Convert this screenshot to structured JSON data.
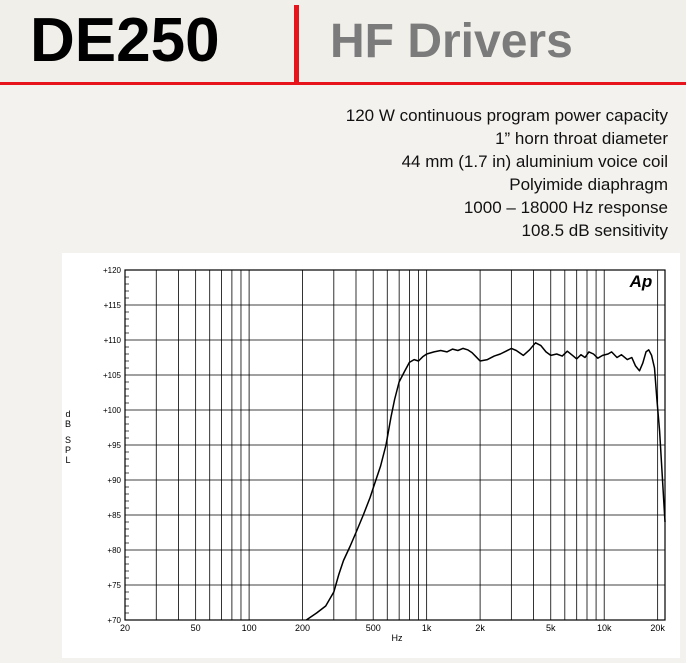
{
  "header": {
    "model": "DE250",
    "category": "HF Drivers",
    "accent_color": "#e8141c",
    "category_color": "#7b7b7b"
  },
  "specs": [
    "120 W continuous program  power capacity",
    "1” horn throat diameter",
    "44 mm (1.7 in) aluminium voice coil",
    "Polyimide diaphragm",
    "1000 – 18000 Hz response",
    "108.5 dB sensitivity"
  ],
  "chart_data": {
    "type": "line",
    "logo": "Ap",
    "xlabel": "Hz",
    "ylabel": "dB SPL",
    "xscale": "log",
    "xlim": [
      20,
      22000
    ],
    "ylim": [
      70,
      120
    ],
    "grid": true,
    "y_ticks": [
      70,
      75,
      80,
      85,
      90,
      95,
      100,
      105,
      110,
      115,
      120
    ],
    "y_tick_labels": [
      "+70",
      "+75",
      "+80",
      "+85",
      "+90",
      "+95",
      "+100",
      "+105",
      "+110",
      "+115",
      "+120"
    ],
    "x_ticks": [
      20,
      50,
      100,
      200,
      500,
      1000,
      2000,
      5000,
      10000,
      20000
    ],
    "x_tick_labels": [
      "20",
      "50",
      "100",
      "200",
      "500",
      "1k",
      "2k",
      "5k",
      "10k",
      "20k"
    ],
    "x_gridlines": [
      20,
      30,
      40,
      50,
      60,
      70,
      80,
      90,
      100,
      200,
      300,
      400,
      500,
      600,
      700,
      800,
      900,
      1000,
      2000,
      3000,
      4000,
      5000,
      6000,
      7000,
      8000,
      9000,
      10000,
      20000
    ],
    "series": [
      {
        "color": "#000000",
        "points": [
          [
            210,
            70
          ],
          [
            240,
            71
          ],
          [
            270,
            72
          ],
          [
            300,
            74
          ],
          [
            320,
            76.5
          ],
          [
            340,
            78.5
          ],
          [
            370,
            80.5
          ],
          [
            400,
            82.5
          ],
          [
            440,
            85
          ],
          [
            480,
            87.5
          ],
          [
            510,
            89.5
          ],
          [
            550,
            92
          ],
          [
            590,
            95
          ],
          [
            630,
            99
          ],
          [
            660,
            101.5
          ],
          [
            700,
            104
          ],
          [
            750,
            105.5
          ],
          [
            800,
            106.8
          ],
          [
            850,
            107.2
          ],
          [
            900,
            107.0
          ],
          [
            950,
            107.6
          ],
          [
            1000,
            108.0
          ],
          [
            1100,
            108.3
          ],
          [
            1200,
            108.5
          ],
          [
            1300,
            108.3
          ],
          [
            1400,
            108.7
          ],
          [
            1500,
            108.5
          ],
          [
            1600,
            108.8
          ],
          [
            1700,
            108.6
          ],
          [
            1800,
            108.2
          ],
          [
            1900,
            107.6
          ],
          [
            2000,
            107.0
          ],
          [
            2200,
            107.2
          ],
          [
            2400,
            107.7
          ],
          [
            2600,
            108.0
          ],
          [
            2800,
            108.4
          ],
          [
            3000,
            108.8
          ],
          [
            3200,
            108.5
          ],
          [
            3500,
            107.8
          ],
          [
            3800,
            108.6
          ],
          [
            4100,
            109.6
          ],
          [
            4400,
            109.2
          ],
          [
            4700,
            108.3
          ],
          [
            5000,
            107.8
          ],
          [
            5400,
            108.0
          ],
          [
            5800,
            107.7
          ],
          [
            6200,
            108.4
          ],
          [
            6700,
            107.7
          ],
          [
            7000,
            107.3
          ],
          [
            7400,
            107.9
          ],
          [
            7800,
            107.5
          ],
          [
            8200,
            108.3
          ],
          [
            8700,
            108.0
          ],
          [
            9200,
            107.4
          ],
          [
            9800,
            107.8
          ],
          [
            10500,
            108.0
          ],
          [
            11000,
            108.3
          ],
          [
            11800,
            107.5
          ],
          [
            12500,
            107.9
          ],
          [
            13500,
            107.2
          ],
          [
            14300,
            107.5
          ],
          [
            15000,
            106.3
          ],
          [
            15800,
            105.6
          ],
          [
            16500,
            106.7
          ],
          [
            17200,
            108.3
          ],
          [
            17800,
            108.6
          ],
          [
            18500,
            107.8
          ],
          [
            19200,
            106.0
          ],
          [
            19800,
            101.5
          ],
          [
            20500,
            97.0
          ],
          [
            21200,
            91.0
          ],
          [
            22000,
            84.0
          ]
        ]
      }
    ]
  }
}
